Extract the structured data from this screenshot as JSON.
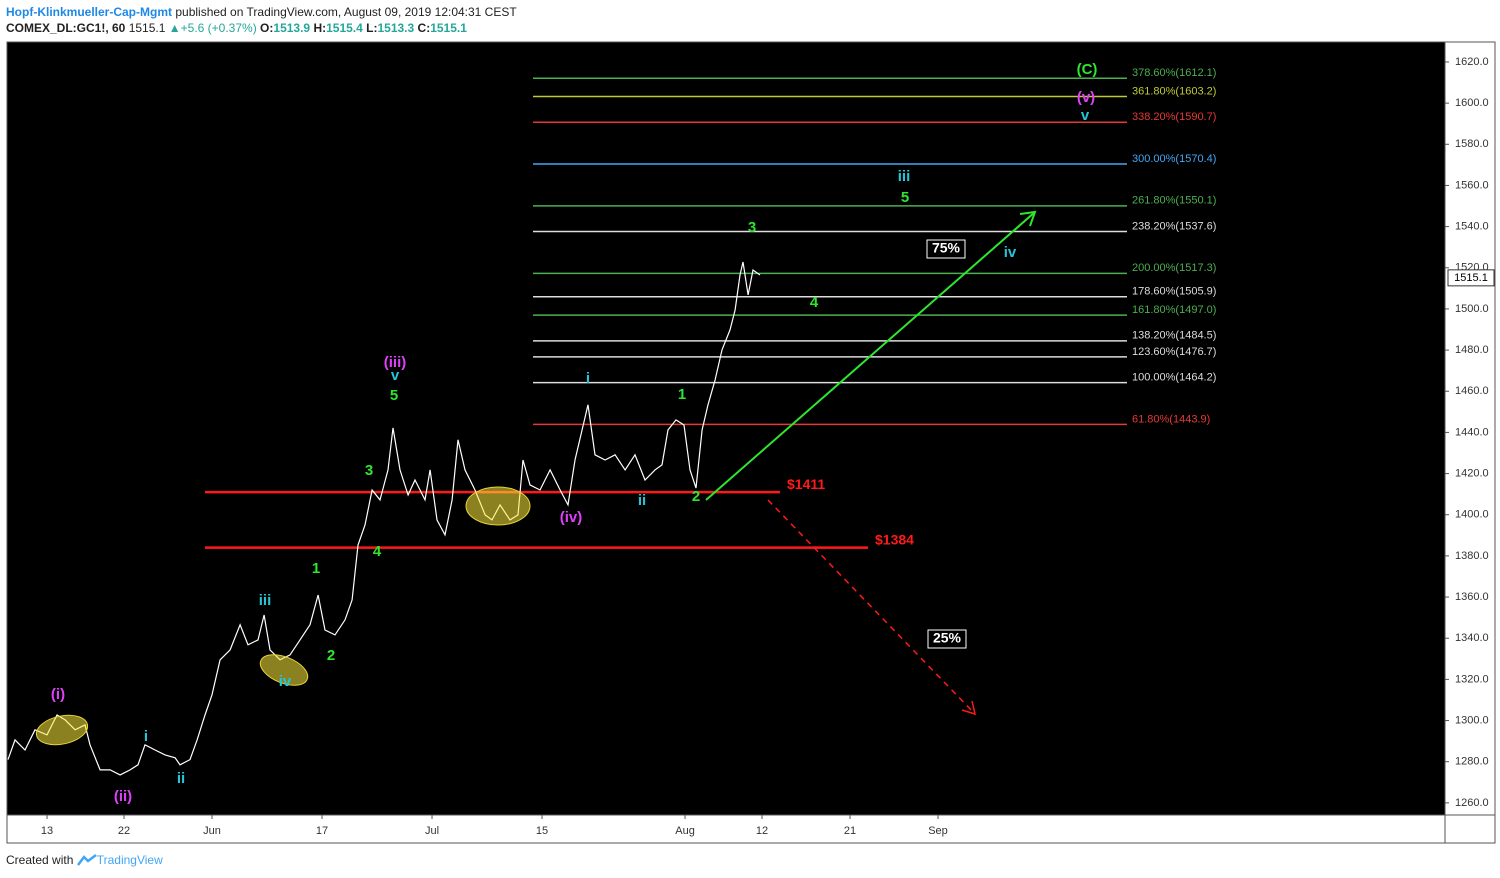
{
  "header": {
    "author": "Hopf-Klinkmueller-Cap-Mgmt",
    "published": "published on TradingView.com, August 09, 2019 12:04:31 CEST",
    "symbol": "COMEX_DL:GC1!, 60",
    "price": "1515.1",
    "arrow": "▲",
    "change": "+5.6 (+0.37%)",
    "o_label": "O:",
    "o": "1513.9",
    "h_label": "H:",
    "h": "1515.4",
    "l_label": "L:",
    "l": "1513.3",
    "c_label": "C:",
    "c": "1515.1"
  },
  "footer": {
    "created": "Created with",
    "brand": "TradingView"
  },
  "chart_data": {
    "type": "line",
    "color": "#ffffff",
    "x": [
      -3.55,
      -2.91,
      -2,
      -1.09,
      0,
      0.91,
      1.64,
      2.55,
      3.45,
      3.91,
      4.82,
      5.73,
      6.64,
      7.55,
      8.27,
      8.91,
      9.82,
      10.73,
      11.64,
      12.09,
      13,
      13.64,
      14.36,
      15,
      15.73,
      16.64,
      17.55,
      18.27,
      19.18,
      19.73,
      20.27,
      21.18,
      22.09,
      23,
      23.91,
      24.64,
      25.27,
      26.18,
      27.09,
      27.73,
      28.27,
      28.91,
      29.55,
      30.27,
      31,
      31.45,
      32.09,
      32.82,
      33.45,
      34.36,
      34.82,
      35.45,
      36.18,
      36.82,
      37.36,
      38,
      38.91,
      39.82,
      40.45,
      41.18,
      42.09,
      42.82,
      43.27,
      43.91,
      44.82,
      45.73,
      46.64,
      47.36,
      48,
      48.64,
      49.18,
      49.82,
      50.73,
      51.64,
      52.55,
      53.45,
      54.36,
      55.27,
      55.91,
      56.45,
      57.18,
      57.91,
      58.45,
      59,
      59.55,
      60.09,
      60.73,
      61.36,
      62.09,
      62.55,
      63,
      63.27,
      63.73,
      64.18,
      64.82
    ],
    "values": [
      1281,
      1290.6,
      1285.7,
      1295.5,
      1293,
      1302.7,
      1300.3,
      1295.5,
      1297.9,
      1288.2,
      1276,
      1276,
      1273.6,
      1276,
      1278.5,
      1288.2,
      1285.7,
      1283.3,
      1281.9,
      1278.5,
      1281,
      1290.6,
      1302.7,
      1312.5,
      1329.5,
      1334.3,
      1346.5,
      1336.8,
      1339.2,
      1351.3,
      1334.3,
      1329.5,
      1331.9,
      1339.2,
      1346.5,
      1361,
      1344,
      1341.6,
      1348.9,
      1358.6,
      1385.3,
      1395,
      1412,
      1407.2,
      1421.8,
      1442.2,
      1421.8,
      1409.6,
      1416.9,
      1407.2,
      1421.8,
      1397.5,
      1390.2,
      1407.2,
      1436.4,
      1421.8,
      1412,
      1399.9,
      1397.5,
      1404.8,
      1397.5,
      1399.9,
      1426.6,
      1414.5,
      1412,
      1421.8,
      1412,
      1404.8,
      1426.6,
      1441.2,
      1453.4,
      1429.1,
      1426.6,
      1429.1,
      1421.8,
      1429.1,
      1416.9,
      1421.8,
      1424.2,
      1441.2,
      1446.1,
      1443.6,
      1421.8,
      1413,
      1441.2,
      1453.4,
      1465.5,
      1480.1,
      1489.8,
      1499.5,
      1516.5,
      1522.8,
      1506.8,
      1518.9,
      1516.5
    ],
    "last_price": 1515.1,
    "xlim": [
      -3.64,
      127.09
    ],
    "xticks": [
      {
        "value": 0,
        "label": "13"
      },
      {
        "value": 7,
        "label": "22"
      },
      {
        "value": 15,
        "label": "Jun"
      },
      {
        "value": 25,
        "label": "17"
      },
      {
        "value": 35,
        "label": "Jul"
      },
      {
        "value": 45,
        "label": "15"
      },
      {
        "value": 58,
        "label": "Aug"
      },
      {
        "value": 65,
        "label": "12"
      },
      {
        "value": 73,
        "label": "21"
      },
      {
        "value": 81,
        "label": "Sep"
      }
    ],
    "ylim": [
      1254.1,
      1629.7
    ],
    "yticks": [
      {
        "value": 1260,
        "label": "1260.0"
      },
      {
        "value": 1280,
        "label": "1280.0"
      },
      {
        "value": 1300,
        "label": "1300.0"
      },
      {
        "value": 1320,
        "label": "1320.0"
      },
      {
        "value": 1340,
        "label": "1340.0"
      },
      {
        "value": 1360,
        "label": "1360.0"
      },
      {
        "value": 1380,
        "label": "1380.0"
      },
      {
        "value": 1400,
        "label": "1400.0"
      },
      {
        "value": 1420,
        "label": "1420.0"
      },
      {
        "value": 1440,
        "label": "1440.0"
      },
      {
        "value": 1460,
        "label": "1460.0"
      },
      {
        "value": 1480,
        "label": "1480.0"
      },
      {
        "value": 1500,
        "label": "1500.0"
      },
      {
        "value": 1520,
        "label": "1520.0"
      },
      {
        "value": 1540,
        "label": "1540.0"
      },
      {
        "value": 1560,
        "label": "1560.0"
      },
      {
        "value": 1580,
        "label": "1580.0"
      },
      {
        "value": 1600,
        "label": "1600.0"
      },
      {
        "value": 1620,
        "label": "1620.0"
      }
    ],
    "fib_levels": [
      {
        "label": "378.60%(1612.1)",
        "value": 1612.1,
        "color": "#4caf50"
      },
      {
        "label": "361.80%(1603.2)",
        "value": 1603.2,
        "color": "#c0ca33"
      },
      {
        "label": "338.20%(1590.7)",
        "value": 1590.7,
        "color": "#e53935"
      },
      {
        "label": "300.00%(1570.4)",
        "value": 1570.4,
        "color": "#42a5f5"
      },
      {
        "label": "261.80%(1550.1)",
        "value": 1550.1,
        "color": "#4caf50"
      },
      {
        "label": "238.20%(1537.6)",
        "value": 1537.6,
        "color": "#dddddd"
      },
      {
        "label": "200.00%(1517.3)",
        "value": 1517.3,
        "color": "#4caf50"
      },
      {
        "label": "178.60%(1505.9)",
        "value": 1505.9,
        "color": "#dddddd"
      },
      {
        "label": "161.80%(1497.0)",
        "value": 1497.0,
        "color": "#4caf50"
      },
      {
        "label": "138.20%(1484.5)",
        "value": 1484.5,
        "color": "#dddddd"
      },
      {
        "label": "123.60%(1476.7)",
        "value": 1476.7,
        "color": "#dddddd"
      },
      {
        "label": "100.00%(1464.2)",
        "value": 1464.2,
        "color": "#dddddd"
      },
      {
        "label": "61.80%(1443.9)",
        "value": 1443.9,
        "color": "#e53935"
      }
    ],
    "levels": [
      {
        "label": "$1411",
        "value": 1411,
        "color": "#ff1a1a"
      },
      {
        "label": "$1384",
        "value": 1384,
        "color": "#ff1a1a"
      }
    ],
    "annotations": [
      {
        "text": "(i)",
        "color": "#e040fb"
      },
      {
        "text": "(ii)",
        "color": "#e040fb"
      },
      {
        "text": "i",
        "color": "#26c6da"
      },
      {
        "text": "ii",
        "color": "#26c6da"
      },
      {
        "text": "iii",
        "color": "#26c6da"
      },
      {
        "text": "iv",
        "color": "#26c6da"
      },
      {
        "text": "1",
        "color": "#2ee62e"
      },
      {
        "text": "2",
        "color": "#2ee62e"
      },
      {
        "text": "3",
        "color": "#2ee62e"
      },
      {
        "text": "4",
        "color": "#2ee62e"
      },
      {
        "text": "(iii)",
        "color": "#e040fb"
      },
      {
        "text": "v",
        "color": "#26c6da"
      },
      {
        "text": "5",
        "color": "#2ee62e"
      },
      {
        "text": "(iv)",
        "color": "#e040fb"
      },
      {
        "text": "i",
        "color": "#26c6da"
      },
      {
        "text": "ii",
        "color": "#26c6da"
      },
      {
        "text": "1",
        "color": "#2ee62e"
      },
      {
        "text": "2",
        "color": "#2ee62e"
      },
      {
        "text": "3",
        "color": "#2ee62e"
      },
      {
        "text": "4",
        "color": "#2ee62e"
      },
      {
        "text": "iii",
        "color": "#26c6da"
      },
      {
        "text": "5",
        "color": "#2ee62e"
      },
      {
        "text": "iv",
        "color": "#26c6da"
      },
      {
        "text": "(C)",
        "color": "#2ee62e"
      },
      {
        "text": "(v)",
        "color": "#e040fb"
      },
      {
        "text": "v",
        "color": "#26c6da"
      }
    ],
    "scenarios": [
      "75%",
      "25%"
    ]
  }
}
